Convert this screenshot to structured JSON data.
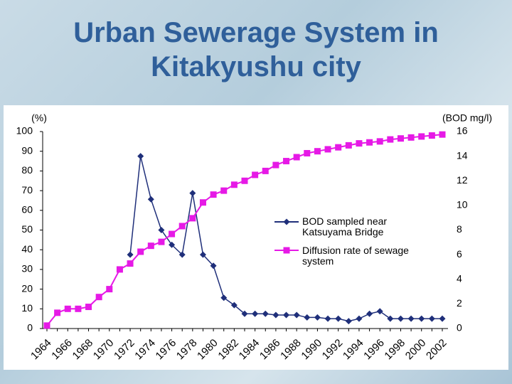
{
  "title": "Urban Sewerage System in Kitakyushu city",
  "chart_data": {
    "type": "line",
    "y_label": "(%)",
    "y2_label": "(BOD mg/l)",
    "categories": [
      "1964",
      null,
      "1966",
      null,
      "1968",
      null,
      "1970",
      null,
      "1972",
      null,
      "1974",
      null,
      "1976",
      null,
      "1978",
      null,
      "1980",
      null,
      "1982",
      null,
      "1984",
      null,
      "1986",
      null,
      "1988",
      null,
      "1990",
      null,
      "1992",
      null,
      "1994",
      null,
      "1996",
      null,
      "1998",
      null,
      "2000",
      null,
      "2002"
    ],
    "series": [
      {
        "name": "BOD sampled near Katsuyama Bridge",
        "color": "#1f2f7a",
        "marker": "diamond",
        "axis": "y2",
        "values": [
          null,
          null,
          null,
          null,
          null,
          null,
          null,
          null,
          6.0,
          14.0,
          10.5,
          8.0,
          6.8,
          6.0,
          11.0,
          6.0,
          5.1,
          2.5,
          1.9,
          1.2,
          1.2,
          1.2,
          1.1,
          1.1,
          1.1,
          0.9,
          0.9,
          0.8,
          0.8,
          0.6,
          0.8,
          1.2,
          1.4,
          0.8,
          0.8,
          0.8,
          0.8,
          0.8,
          0.8
        ]
      },
      {
        "name": "Diffusion rate of sewage system",
        "color": "#e619e6",
        "marker": "square",
        "values": [
          1.5,
          8,
          10,
          10,
          11,
          16,
          20,
          30,
          33,
          39,
          42,
          44,
          48,
          52,
          56,
          64,
          68,
          70,
          73,
          75,
          78,
          80,
          83,
          85,
          87,
          89,
          90,
          91,
          92,
          93,
          94,
          94.5,
          95,
          96,
          96.5,
          97,
          97.5,
          98,
          98.5
        ]
      }
    ],
    "ylim": [
      0,
      100
    ],
    "yticks": [
      0,
      10,
      20,
      30,
      40,
      50,
      60,
      70,
      80,
      90,
      100
    ],
    "y2lim": [
      0,
      16
    ],
    "y2ticks": [
      0,
      2,
      4,
      6,
      8,
      10,
      12,
      14,
      16
    ]
  }
}
